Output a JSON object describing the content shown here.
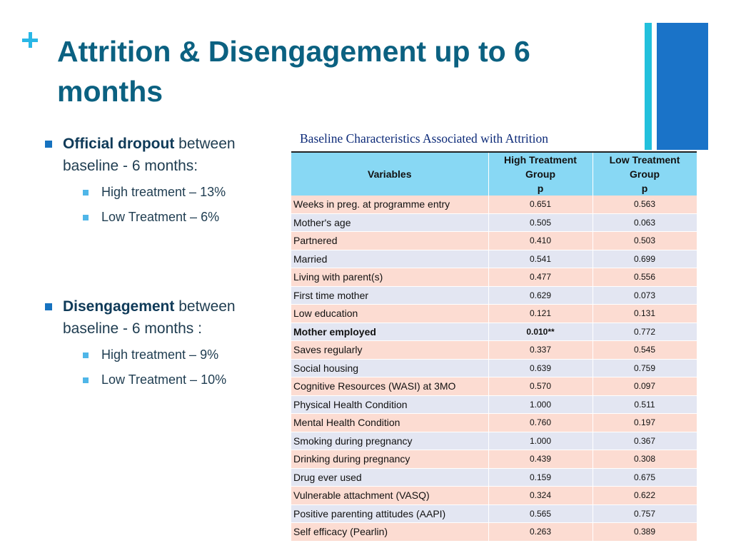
{
  "slide": {
    "title": "Attrition & Disengagement up to 6 months"
  },
  "bullets": [
    {
      "bold": "Official dropout",
      "text": " between baseline - 6 months:",
      "sub": [
        "High treatment – 13%",
        "Low Treatment – 6%"
      ]
    },
    {
      "bold": "Disengagement",
      "text": " between baseline - 6 months :",
      "sub": [
        "High treatment – 9%",
        "Low Treatment – 10%"
      ]
    }
  ],
  "table": {
    "title": "Baseline Characteristics Associated with Attrition",
    "headers": {
      "variables": "Variables",
      "high": "High Treatment Group",
      "high_sub": "p",
      "low": "Low Treatment Group",
      "low_sub": "p"
    },
    "rows": [
      {
        "variable": "Weeks in preg. at programme entry",
        "high": "0.651",
        "low": "0.563"
      },
      {
        "variable": "Mother's age",
        "high": "0.505",
        "low": "0.063"
      },
      {
        "variable": "Partnered",
        "high": "0.410",
        "low": "0.503"
      },
      {
        "variable": "Married",
        "high": "0.541",
        "low": "0.699"
      },
      {
        "variable": "Living with parent(s)",
        "high": "0.477",
        "low": "0.556"
      },
      {
        "variable": "First time mother",
        "high": "0.629",
        "low": "0.073"
      },
      {
        "variable": "Low education",
        "high": "0.121",
        "low": "0.131"
      },
      {
        "variable": "Mother employed",
        "high": "0.010**",
        "low": "0.772",
        "bold": true
      },
      {
        "variable": "Saves regularly",
        "high": "0.337",
        "low": "0.545"
      },
      {
        "variable": "Social housing",
        "high": "0.639",
        "low": "0.759"
      },
      {
        "variable": "Cognitive Resources (WASI) at 3MO",
        "high": "0.570",
        "low": "0.097"
      },
      {
        "variable": "Physical Health Condition",
        "high": "1.000",
        "low": "0.511"
      },
      {
        "variable": "Mental Health Condition",
        "high": "0.760",
        "low": "0.197"
      },
      {
        "variable": "Smoking during pregnancy",
        "high": "1.000",
        "low": "0.367"
      },
      {
        "variable": "Drinking during pregnancy",
        "high": "0.439",
        "low": "0.308"
      },
      {
        "variable": "Drug ever used",
        "high": "0.159",
        "low": "0.675"
      },
      {
        "variable": "Vulnerable attachment (VASQ)",
        "high": "0.324",
        "low": "0.622"
      },
      {
        "variable": "Positive parenting attitudes (AAPI)",
        "high": "0.565",
        "low": "0.757"
      },
      {
        "variable": "Self efficacy (Pearlin)",
        "high": "0.263",
        "low": "0.389"
      }
    ]
  }
}
